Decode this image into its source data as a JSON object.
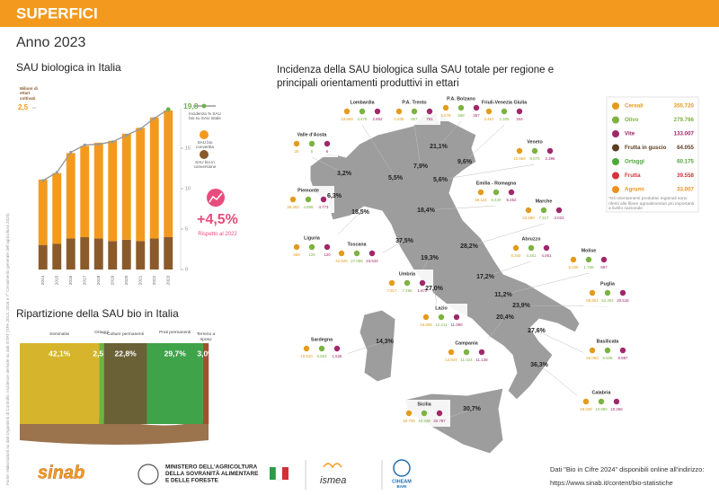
{
  "header": {
    "section": "SUPERFICI",
    "year": "Anno 2023"
  },
  "source": "Fonte: elaborazioni su dati Organismi di Controllo. Incidenze derivate su dati ISTAT (SPA 2013, 2016 e 7° Censimento generale dell'agricoltura 2020)",
  "chart_data": [
    {
      "type": "bar",
      "stacked": true,
      "title": "SAU biologica in Italia",
      "y_label": "Milioni di ettari coltivati",
      "categories": [
        "2014",
        "2015",
        "2016",
        "2017",
        "2018",
        "2019",
        "2020",
        "2021",
        "2022",
        "2023"
      ],
      "series": [
        {
          "name": "SAU bio in conversione",
          "color": "#8b5a2b",
          "values": [
            0.38,
            0.4,
            0.48,
            0.5,
            0.48,
            0.44,
            0.46,
            0.44,
            0.48,
            0.5
          ]
        },
        {
          "name": "SAU bio convertita",
          "color": "#f39a1e",
          "values": [
            1.01,
            1.09,
            1.32,
            1.41,
            1.48,
            1.55,
            1.64,
            1.75,
            1.87,
            1.96
          ]
        },
        {
          "name": "Incidenza % SAU bio su SAU totale",
          "color": "#9a9a9a",
          "type": "line",
          "axis": "y2",
          "values": [
            11.0,
            12.0,
            14.5,
            15.4,
            15.5,
            15.8,
            16.6,
            17.4,
            18.7,
            19.8
          ],
          "value_labels": [
            null,
            null,
            null,
            null,
            null,
            null,
            null,
            null,
            null,
            "19,8"
          ]
        }
      ],
      "ylim": [
        0,
        2.5
      ],
      "yticks": [
        {
          "value": 2.5,
          "label": "2,5"
        }
      ],
      "y2lim": [
        0,
        20
      ],
      "y2ticks": [
        0,
        5,
        10,
        15
      ],
      "highlight": {
        "value": "+4,5%",
        "text": "Rispetto al 2022"
      }
    },
    {
      "type": "bar",
      "orientation": "horizontal",
      "stacked": true,
      "title": "Ripartizione della SAU bio in Italia",
      "xlim": [
        0,
        100
      ],
      "series": [
        {
          "name": "Seminativi",
          "color": "#d6b52c",
          "values": [
            42.1
          ],
          "value_labels": [
            "42,1%"
          ]
        },
        {
          "name": "Ortaggi",
          "color": "#6fb33f",
          "values": [
            2.5
          ],
          "value_labels": [
            "2,5%"
          ]
        },
        {
          "name": "Colture permanenti",
          "color": "#6b6137",
          "values": [
            22.8
          ],
          "value_labels": [
            "22,8%"
          ]
        },
        {
          "name": "Prati permanenti",
          "color": "#3fa34a",
          "values": [
            29.7
          ],
          "value_labels": [
            "29,7%"
          ]
        },
        {
          "name": "Terreno a riposo",
          "color": "#a0522d",
          "values": [
            3.0
          ],
          "value_labels": [
            "3,0%"
          ]
        }
      ]
    }
  ],
  "map": {
    "title": "Incidenza della SAU biologica sulla SAU totale per regione e principali orientamenti produttivi in ettari",
    "regions": [
      {
        "name": "Valle d'Aosta",
        "incidence": "3,2%",
        "values": [
          "30",
          "6",
          "6"
        ]
      },
      {
        "name": "Piemonte",
        "incidence": "6,3%",
        "values": [
          "35.393",
          "4.899",
          "4.773"
        ]
      },
      {
        "name": "Lombardia",
        "incidence": "5,5%",
        "values": [
          "33.583",
          "4.476",
          "2.852"
        ]
      },
      {
        "name": "P.A. Trento",
        "incidence": "7,9%",
        "values": [
          "1.635",
          "857",
          "761"
        ]
      },
      {
        "name": "P.A. Bolzano",
        "incidence": "21,1%",
        "values": [
          "2.678",
          "588",
          "257"
        ]
      },
      {
        "name": "Friuli-Venezia Giulia",
        "incidence": "9,6%",
        "values": [
          "2.461",
          "1.305",
          "344"
        ]
      },
      {
        "name": "Veneto",
        "incidence": "5,6%",
        "values": [
          "10.659",
          "8.670",
          "2.396"
        ]
      },
      {
        "name": "Emilia - Romagna",
        "incidence": "18,4%",
        "values": [
          "36.124",
          "6.420",
          "5.252"
        ]
      },
      {
        "name": "Liguria",
        "incidence": "18,5%",
        "values": [
          "569",
          "125",
          "120"
        ]
      },
      {
        "name": "Toscana",
        "incidence": "37,5%",
        "values": [
          "42.626",
          "27.088",
          "23.534"
        ]
      },
      {
        "name": "Marche",
        "incidence": "28,2%",
        "values": [
          "23.589",
          "7.317",
          "3.023"
        ]
      },
      {
        "name": "Umbria",
        "incidence": "19,3%",
        "values": [
          "7.917",
          "7.496",
          "1.872"
        ]
      },
      {
        "name": "Abruzzo",
        "incidence": "17,2%",
        "values": [
          "6.343",
          "4.351",
          "4.061"
        ]
      },
      {
        "name": "Molise",
        "incidence": "11,2%",
        "values": [
          "5.028",
          "1.768",
          "697"
        ]
      },
      {
        "name": "Lazio",
        "incidence": "27,0%",
        "values": [
          "16.908",
          "12.211",
          "11.090"
        ]
      },
      {
        "name": "Campania",
        "incidence": "20,4%",
        "values": [
          "12.844",
          "11.424",
          "11.138"
        ]
      },
      {
        "name": "Puglia",
        "incidence": "23,9%",
        "values": [
          "86.851",
          "52.304",
          "20.515"
        ]
      },
      {
        "name": "Basilicata",
        "incidence": "27,6%",
        "values": [
          "20.063",
          "6.508",
          "5.987"
        ]
      },
      {
        "name": "Calabria",
        "incidence": "36,3%",
        "values": [
          "48.039",
          "10.880",
          "10.266"
        ]
      },
      {
        "name": "Sardegna",
        "incidence": "14,3%",
        "values": [
          "10.510",
          "6.963",
          "1.526"
        ]
      },
      {
        "name": "Sicilia",
        "incidence": "30,7%",
        "values": [
          "36.709",
          "40.338",
          "32.787"
        ]
      }
    ],
    "legend": [
      {
        "name": "Cereali",
        "value": "355.720",
        "color": "#e39b1a"
      },
      {
        "name": "Olivo",
        "value": "279.766",
        "color": "#7bb241"
      },
      {
        "name": "Vite",
        "value": "133.007",
        "color": "#a0276a"
      },
      {
        "name": "Frutta in guscio",
        "value": "64.055",
        "color": "#5a3d22"
      },
      {
        "name": "Ortaggi",
        "value": "60.175",
        "color": "#4fa83b"
      },
      {
        "name": "Frutta",
        "value": "39.558",
        "color": "#d6323a"
      },
      {
        "name": "Agrumi",
        "value": "33.007",
        "color": "#f0901e"
      }
    ],
    "note": "*Gli orientamenti produttivi regionali sono riferiti alle filiere agroalimentari più importanti a livello nazionale"
  },
  "footer": {
    "logos": {
      "sinab": "sinab",
      "ministry": [
        "MINISTERO DELL'AGRICOLTURA",
        "DELLA SOVRANITÀ ALIMENTARE",
        "E DELLE FORESTE"
      ],
      "ismea": "ismea",
      "ciheam": [
        "CIHEAM",
        "BARI"
      ]
    },
    "text": "Dati \"Bio in Cifre 2024\" disponibili online all'indirizzo:",
    "url": "https://www.sinab.it/content/bio-statistiche"
  }
}
